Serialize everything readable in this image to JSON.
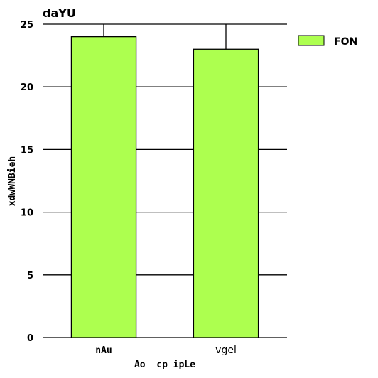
{
  "chart_data": {
    "type": "bar",
    "title": "daYU",
    "xlabel": "Ao  cp ipLe",
    "ylabel": "xdwWNBieh",
    "categories": [
      "nAu",
      "vgel"
    ],
    "series": [
      {
        "name": "FON",
        "values": [
          24,
          23
        ]
      }
    ],
    "error_bars": [
      {
        "high": 25
      },
      {
        "high": 25
      }
    ],
    "ylim": [
      0,
      25
    ],
    "yticks": [
      0,
      5,
      10,
      15,
      20,
      25
    ],
    "grid": true,
    "legend_position": "top-right",
    "bar_color": "#adff4f",
    "edge_color": "#000000",
    "grid_color": "#000000"
  }
}
